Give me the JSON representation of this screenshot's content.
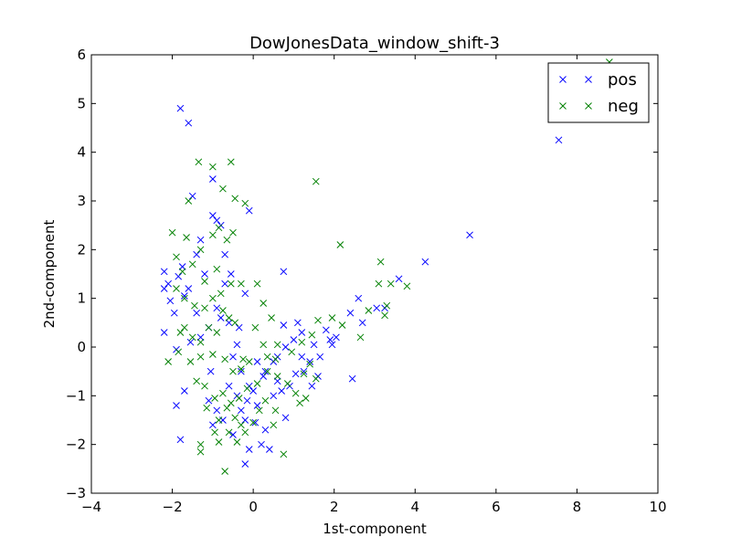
{
  "chart_data": {
    "type": "scatter",
    "title": "DowJonesData_window_shift-3",
    "xlabel": "1st-component",
    "ylabel": "2nd-component",
    "xlim": [
      -4,
      10
    ],
    "ylim": [
      -3,
      6
    ],
    "xticks": [
      "−4",
      "−2",
      "0",
      "2",
      "4",
      "6",
      "8",
      "10"
    ],
    "yticks": [
      "−3",
      "−2",
      "−1",
      "0",
      "1",
      "2",
      "3",
      "4",
      "5",
      "6"
    ],
    "grid": false,
    "legend_position": "top-right",
    "marker": "x",
    "series": [
      {
        "name": "pos",
        "color": "#0000ff",
        "points": [
          [
            -1.8,
            4.9
          ],
          [
            -1.6,
            4.6
          ],
          [
            -1.5,
            3.1
          ],
          [
            -1.0,
            3.45
          ],
          [
            -1.0,
            2.7
          ],
          [
            -0.9,
            2.6
          ],
          [
            -0.1,
            2.8
          ],
          [
            7.55,
            4.25
          ],
          [
            5.35,
            2.3
          ],
          [
            4.25,
            1.75
          ],
          [
            3.6,
            1.4
          ],
          [
            3.05,
            0.8
          ],
          [
            2.6,
            1.0
          ],
          [
            2.4,
            0.7
          ],
          [
            2.7,
            0.5
          ],
          [
            3.25,
            0.8
          ],
          [
            2.45,
            -0.65
          ],
          [
            -1.4,
            1.9
          ],
          [
            -1.3,
            2.2
          ],
          [
            -0.8,
            2.5
          ],
          [
            -0.7,
            1.9
          ],
          [
            -0.2,
            1.1
          ],
          [
            -1.2,
            1.5
          ],
          [
            -1.6,
            1.2
          ],
          [
            -1.7,
            1.05
          ],
          [
            -2.1,
            1.3
          ],
          [
            -2.2,
            1.55
          ],
          [
            -1.85,
            1.45
          ],
          [
            -1.75,
            1.65
          ],
          [
            -2.2,
            1.2
          ],
          [
            -1.95,
            0.7
          ],
          [
            -2.05,
            0.95
          ],
          [
            -1.4,
            0.7
          ],
          [
            -0.55,
            1.5
          ],
          [
            -0.7,
            1.3
          ],
          [
            -0.9,
            0.8
          ],
          [
            -0.8,
            0.6
          ],
          [
            -0.6,
            0.5
          ],
          [
            -1.1,
            0.4
          ],
          [
            -1.3,
            0.2
          ],
          [
            -1.55,
            0.1
          ],
          [
            -1.9,
            -0.05
          ],
          [
            -2.2,
            0.3
          ],
          [
            -1.9,
            -1.2
          ],
          [
            -1.8,
            -1.9
          ],
          [
            -1.7,
            -0.9
          ],
          [
            -1.1,
            -1.1
          ],
          [
            -1.0,
            -1.6
          ],
          [
            -0.9,
            -1.3
          ],
          [
            -0.6,
            -0.8
          ],
          [
            -0.4,
            -1.0
          ],
          [
            -0.2,
            -1.5
          ],
          [
            -0.1,
            -2.1
          ],
          [
            -0.2,
            -2.4
          ],
          [
            0.2,
            -2.0
          ],
          [
            0.3,
            -1.7
          ],
          [
            0.1,
            -1.2
          ],
          [
            0.5,
            -1.0
          ],
          [
            0.7,
            -0.9
          ],
          [
            0.8,
            -1.45
          ],
          [
            0.4,
            -2.1
          ],
          [
            -0.3,
            -0.5
          ],
          [
            -0.4,
            0.05
          ],
          [
            0.1,
            -0.3
          ],
          [
            0.3,
            -0.5
          ],
          [
            0.5,
            -0.3
          ],
          [
            0.6,
            -0.2
          ],
          [
            0.8,
            0.0
          ],
          [
            1.0,
            0.15
          ],
          [
            1.2,
            0.3
          ],
          [
            1.1,
            0.5
          ],
          [
            0.75,
            0.45
          ],
          [
            0.75,
            1.55
          ],
          [
            1.25,
            -0.5
          ],
          [
            1.45,
            -0.8
          ],
          [
            1.6,
            -0.6
          ],
          [
            1.65,
            -0.2
          ],
          [
            1.5,
            0.05
          ],
          [
            1.8,
            0.35
          ],
          [
            1.9,
            0.15
          ],
          [
            1.95,
            0.05
          ],
          [
            2.05,
            0.2
          ],
          [
            1.4,
            -0.3
          ],
          [
            1.2,
            -0.2
          ],
          [
            1.05,
            -0.55
          ],
          [
            0.9,
            -0.8
          ],
          [
            0.25,
            -0.6
          ],
          [
            0.0,
            -0.9
          ],
          [
            -0.3,
            -1.3
          ],
          [
            -0.5,
            -1.8
          ],
          [
            -0.75,
            -1.5
          ],
          [
            -1.05,
            -0.5
          ],
          [
            -0.5,
            -0.2
          ],
          [
            -0.35,
            0.4
          ],
          [
            -0.1,
            -0.8
          ],
          [
            0.05,
            -1.55
          ],
          [
            -0.15,
            -1.1
          ],
          [
            0.6,
            -0.7
          ]
        ]
      },
      {
        "name": "neg",
        "color": "#008000",
        "points": [
          [
            8.8,
            5.85
          ],
          [
            -1.35,
            3.8
          ],
          [
            -1.0,
            3.7
          ],
          [
            -0.55,
            3.8
          ],
          [
            -0.75,
            3.25
          ],
          [
            1.55,
            3.4
          ],
          [
            -1.6,
            3.0
          ],
          [
            -0.45,
            3.05
          ],
          [
            -0.2,
            2.95
          ],
          [
            -0.65,
            2.2
          ],
          [
            -0.5,
            2.35
          ],
          [
            -0.85,
            2.45
          ],
          [
            2.15,
            2.1
          ],
          [
            -2.0,
            2.35
          ],
          [
            -1.65,
            2.25
          ],
          [
            -1.3,
            2.0
          ],
          [
            -1.0,
            2.3
          ],
          [
            -1.9,
            1.85
          ],
          [
            -1.75,
            1.55
          ],
          [
            -1.5,
            1.7
          ],
          [
            -1.2,
            1.35
          ],
          [
            -0.9,
            1.6
          ],
          [
            -0.8,
            1.1
          ],
          [
            -0.55,
            1.3
          ],
          [
            -0.3,
            1.3
          ],
          [
            0.1,
            1.3
          ],
          [
            0.25,
            0.9
          ],
          [
            0.45,
            0.6
          ],
          [
            3.15,
            1.75
          ],
          [
            3.4,
            1.3
          ],
          [
            3.1,
            1.3
          ],
          [
            3.8,
            1.25
          ],
          [
            3.3,
            0.85
          ],
          [
            2.85,
            0.75
          ],
          [
            2.65,
            0.2
          ],
          [
            3.25,
            0.65
          ],
          [
            2.2,
            0.45
          ],
          [
            1.95,
            0.6
          ],
          [
            1.6,
            0.55
          ],
          [
            1.45,
            0.25
          ],
          [
            1.2,
            0.1
          ],
          [
            0.95,
            -0.1
          ],
          [
            0.55,
            -0.25
          ],
          [
            0.25,
            0.05
          ],
          [
            -1.9,
            1.2
          ],
          [
            -1.7,
            1.0
          ],
          [
            -1.45,
            0.85
          ],
          [
            -1.2,
            0.8
          ],
          [
            -1.0,
            1.0
          ],
          [
            -0.75,
            0.75
          ],
          [
            -0.6,
            0.6
          ],
          [
            -0.9,
            0.3
          ],
          [
            -1.1,
            0.4
          ],
          [
            -1.3,
            0.1
          ],
          [
            -1.5,
            0.2
          ],
          [
            -1.7,
            0.4
          ],
          [
            -1.8,
            0.3
          ],
          [
            -2.1,
            -0.3
          ],
          [
            -1.85,
            -0.1
          ],
          [
            -1.55,
            -0.3
          ],
          [
            -1.3,
            -0.2
          ],
          [
            -1.0,
            -0.15
          ],
          [
            -0.7,
            -0.25
          ],
          [
            -0.5,
            -0.5
          ],
          [
            -0.3,
            -0.45
          ],
          [
            -0.1,
            -0.3
          ],
          [
            -1.4,
            -0.7
          ],
          [
            -1.2,
            -0.8
          ],
          [
            -0.95,
            -1.05
          ],
          [
            -0.75,
            -0.95
          ],
          [
            -0.55,
            -1.15
          ],
          [
            -0.35,
            -1.05
          ],
          [
            -0.15,
            -0.85
          ],
          [
            0.1,
            -0.75
          ],
          [
            0.35,
            -0.5
          ],
          [
            0.6,
            -0.6
          ],
          [
            0.85,
            -0.75
          ],
          [
            1.05,
            -0.95
          ],
          [
            1.25,
            -0.55
          ],
          [
            1.4,
            -0.35
          ],
          [
            1.55,
            -0.65
          ],
          [
            1.3,
            -1.05
          ],
          [
            1.15,
            -1.15
          ],
          [
            -1.3,
            -2.0
          ],
          [
            -1.3,
            -2.15
          ],
          [
            -0.85,
            -1.95
          ],
          [
            -0.7,
            -2.55
          ],
          [
            -0.6,
            -1.75
          ],
          [
            -0.4,
            -1.95
          ],
          [
            -0.3,
            -1.6
          ],
          [
            -0.2,
            -1.75
          ],
          [
            0.0,
            -1.55
          ],
          [
            0.15,
            -1.3
          ],
          [
            0.3,
            -1.1
          ],
          [
            0.55,
            -1.3
          ],
          [
            0.75,
            -2.2
          ],
          [
            0.5,
            -1.6
          ],
          [
            -0.45,
            -1.45
          ],
          [
            -0.65,
            -1.25
          ],
          [
            -0.85,
            -1.5
          ],
          [
            -0.95,
            -1.75
          ],
          [
            -1.15,
            -1.25
          ],
          [
            -0.25,
            -0.25
          ],
          [
            0.05,
            0.4
          ],
          [
            -0.45,
            0.5
          ],
          [
            0.35,
            -0.2
          ],
          [
            0.6,
            0.05
          ]
        ]
      }
    ]
  }
}
